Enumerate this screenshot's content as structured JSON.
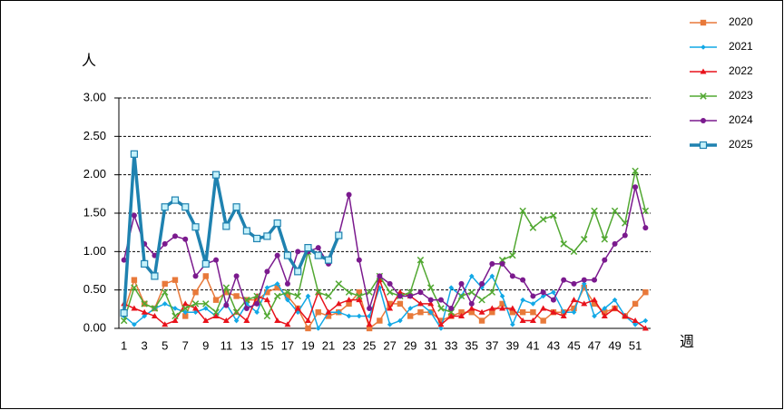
{
  "chart_data": {
    "type": "line",
    "y_label": "人",
    "x_label": "週",
    "categories": [
      "1",
      null,
      "3",
      null,
      "5",
      null,
      "7",
      null,
      "9",
      null,
      "11",
      null,
      "13",
      null,
      "15",
      null,
      "17",
      null,
      "19",
      null,
      "21",
      null,
      "23",
      null,
      "25",
      null,
      "27",
      null,
      "29",
      null,
      "31",
      null,
      "33",
      null,
      "35",
      null,
      "37",
      null,
      "39",
      null,
      "41",
      null,
      "43",
      null,
      "45",
      null,
      "47",
      null,
      "49",
      null,
      "51",
      null
    ],
    "ylim": [
      0,
      3
    ],
    "yticks": [
      {
        "value": 0,
        "label": "0.00"
      },
      {
        "value": 0.5,
        "label": "0.50"
      },
      {
        "value": 1,
        "label": "1.00"
      },
      {
        "value": 1.5,
        "label": "1.50"
      },
      {
        "value": 2,
        "label": "2.00"
      },
      {
        "value": 2.5,
        "label": "2.50"
      },
      {
        "value": 3,
        "label": "3.00"
      }
    ],
    "grid": true,
    "legend": "right",
    "series": [
      {
        "name": "2020",
        "color": "#e8793a",
        "marker": "square",
        "line_width": 1.5,
        "values": [
          0.21,
          0.63,
          0.32,
          0.26,
          0.58,
          0.63,
          0.16,
          0.47,
          0.68,
          0.37,
          0.47,
          0.42,
          0.37,
          0.37,
          0.47,
          0.53,
          0.42,
          0.26,
          0.0,
          0.21,
          0.16,
          0.21,
          0.32,
          0.47,
          0.0,
          0.1,
          0.32,
          0.32,
          0.16,
          0.21,
          0.21,
          0.1,
          0.16,
          0.21,
          0.21,
          0.1,
          0.21,
          0.32,
          0.21,
          0.21,
          0.21,
          0.1,
          0.21,
          0.21,
          0.26,
          0.53,
          0.32,
          0.21,
          0.26,
          0.16,
          0.32,
          0.47
        ]
      },
      {
        "name": "2021",
        "color": "#11a8e6",
        "marker": "diamond",
        "line_width": 1.5,
        "values": [
          0.16,
          0.05,
          0.16,
          0.26,
          0.32,
          0.26,
          0.21,
          0.21,
          0.26,
          0.16,
          0.32,
          0.1,
          0.32,
          0.21,
          0.53,
          0.58,
          0.37,
          0.21,
          0.42,
          0.0,
          0.21,
          0.21,
          0.16,
          0.16,
          0.16,
          0.53,
          0.05,
          0.1,
          0.26,
          0.32,
          0.21,
          0.0,
          0.53,
          0.42,
          0.68,
          0.53,
          0.68,
          0.42,
          0.05,
          0.37,
          0.32,
          0.42,
          0.47,
          0.21,
          0.21,
          0.58,
          0.16,
          0.26,
          0.37,
          0.16,
          0.05,
          0.1
        ]
      },
      {
        "name": "2022",
        "color": "#e8121b",
        "marker": "triangle",
        "line_width": 1.5,
        "values": [
          0.32,
          0.26,
          0.21,
          0.16,
          0.05,
          0.1,
          0.32,
          0.26,
          0.1,
          0.16,
          0.1,
          0.21,
          0.1,
          0.42,
          0.37,
          0.1,
          0.05,
          0.26,
          0.1,
          0.47,
          0.21,
          0.32,
          0.37,
          0.37,
          0.05,
          0.63,
          0.26,
          0.47,
          0.42,
          0.32,
          0.32,
          0.05,
          0.16,
          0.16,
          0.26,
          0.21,
          0.26,
          0.26,
          0.26,
          0.1,
          0.1,
          0.26,
          0.21,
          0.16,
          0.37,
          0.32,
          0.37,
          0.16,
          0.26,
          0.16,
          0.1,
          0.0
        ]
      },
      {
        "name": "2023",
        "color": "#52a832",
        "marker": "x",
        "line_width": 1.5,
        "values": [
          0.1,
          0.53,
          0.32,
          0.26,
          0.47,
          0.16,
          0.26,
          0.32,
          0.32,
          0.21,
          0.53,
          0.21,
          0.37,
          0.42,
          0.16,
          0.42,
          0.47,
          0.42,
          1.0,
          0.47,
          0.42,
          0.58,
          0.47,
          0.42,
          0.47,
          0.68,
          0.47,
          0.42,
          0.47,
          0.89,
          0.53,
          0.26,
          0.21,
          0.42,
          0.47,
          0.37,
          0.47,
          0.89,
          0.95,
          1.53,
          1.31,
          1.42,
          1.47,
          1.1,
          1.0,
          1.16,
          1.53,
          1.16,
          1.53,
          1.37,
          2.05,
          1.53
        ]
      },
      {
        "name": "2024",
        "color": "#7b1a8e",
        "marker": "circle",
        "line_width": 1.5,
        "values": [
          0.89,
          1.47,
          1.1,
          0.95,
          1.1,
          1.2,
          1.16,
          0.68,
          0.84,
          0.89,
          0.3,
          0.68,
          0.26,
          0.32,
          0.74,
          0.95,
          0.58,
          1.0,
          1.0,
          1.05,
          0.84,
          1.21,
          1.74,
          0.89,
          0.26,
          0.68,
          0.58,
          0.42,
          0.42,
          0.47,
          0.37,
          0.37,
          0.26,
          0.58,
          0.32,
          0.58,
          0.84,
          0.84,
          0.68,
          0.63,
          0.42,
          0.47,
          0.37,
          0.63,
          0.58,
          0.63,
          0.63,
          0.89,
          1.1,
          1.21,
          1.84,
          1.31
        ]
      },
      {
        "name": "2025",
        "color": "#1f82b0",
        "marker": "open-square",
        "line_width": 3.5,
        "values": [
          0.2,
          2.27,
          0.84,
          0.68,
          1.58,
          1.67,
          1.58,
          1.32,
          0.84,
          2.0,
          1.33,
          1.58,
          1.27,
          1.17,
          1.2,
          1.37,
          0.95,
          0.74,
          1.05,
          0.95,
          0.89,
          1.21,
          null,
          null,
          null,
          null,
          null,
          null,
          null,
          null,
          null,
          null,
          null,
          null,
          null,
          null,
          null,
          null,
          null,
          null,
          null,
          null,
          null,
          null,
          null,
          null,
          null,
          null,
          null,
          null,
          null,
          null
        ]
      }
    ]
  }
}
